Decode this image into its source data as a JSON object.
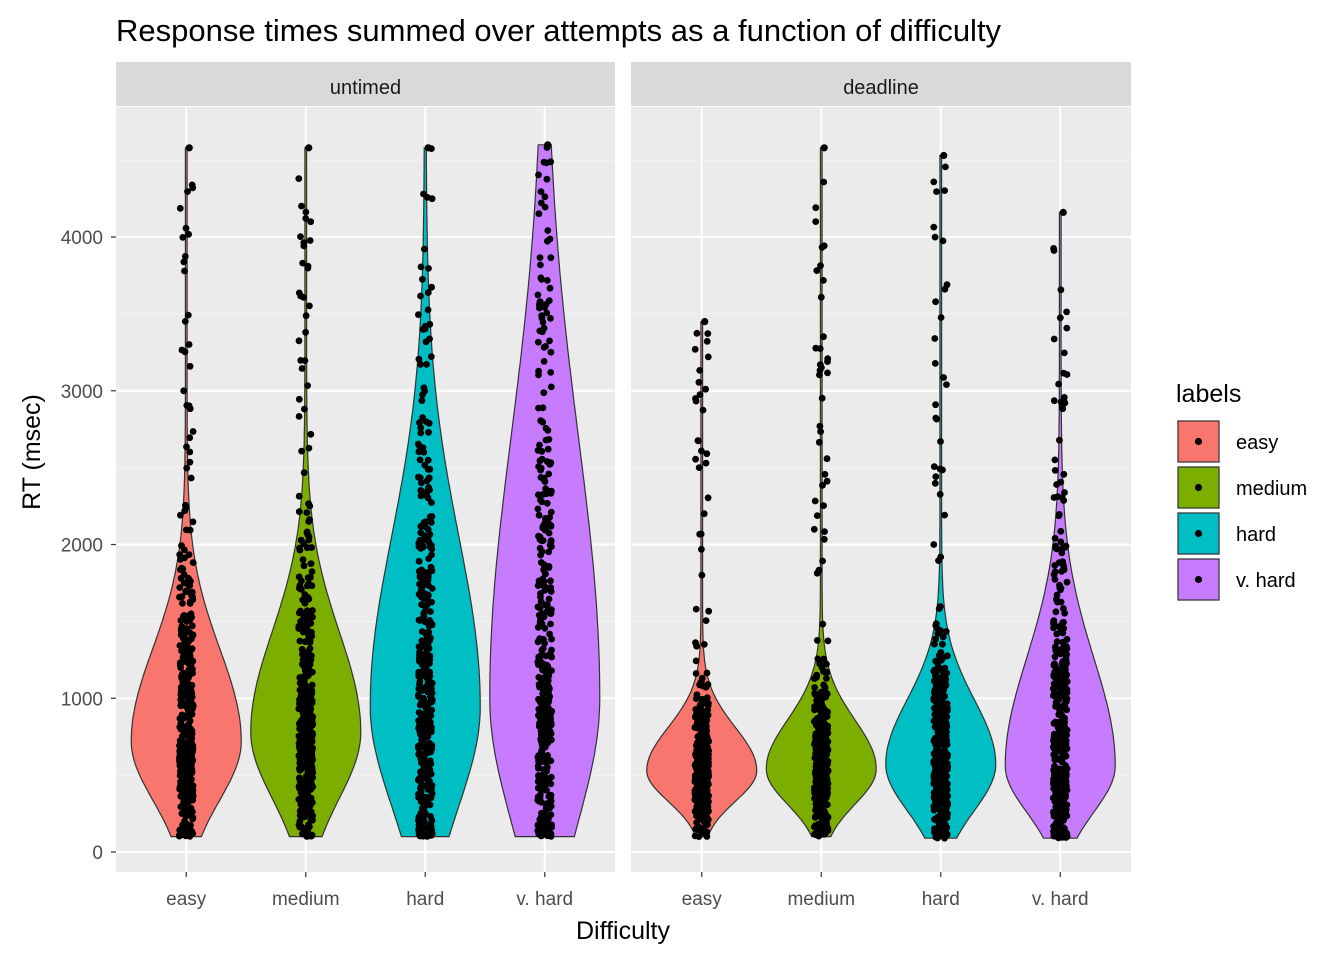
{
  "chart_data": {
    "type": "violin",
    "title": "Response times summed over attempts as a function of difficulty",
    "xlabel": "Difficulty",
    "ylabel": "RT (msec)",
    "ylim": [
      -120,
      4780
    ],
    "yticks": [
      0,
      1000,
      2000,
      3000,
      4000
    ],
    "categories": [
      "easy",
      "medium",
      "hard",
      "v. hard"
    ],
    "legend": {
      "title": "labels",
      "placement": "right",
      "entries": [
        {
          "label": "easy",
          "color": "#F8766D"
        },
        {
          "label": "medium",
          "color": "#7CAE00"
        },
        {
          "label": "hard",
          "color": "#00BFC4"
        },
        {
          "label": "v. hard",
          "color": "#C77CFF"
        }
      ]
    },
    "grid": true,
    "facets": [
      {
        "label": "untimed",
        "series": [
          {
            "category": "easy",
            "min": 100,
            "max": 4580,
            "mode": 720,
            "upper_spread": 600,
            "lower_spread": 380
          },
          {
            "category": "medium",
            "min": 100,
            "max": 4580,
            "mode": 780,
            "upper_spread": 650,
            "lower_spread": 430
          },
          {
            "category": "hard",
            "min": 100,
            "max": 4580,
            "mode": 950,
            "upper_spread": 1100,
            "lower_spread": 650
          },
          {
            "category": "v. hard",
            "min": 100,
            "max": 4600,
            "mode": 1000,
            "upper_spread": 1700,
            "lower_spread": 800
          }
        ]
      },
      {
        "label": "deadline",
        "series": [
          {
            "category": "easy",
            "min": 100,
            "max": 3450,
            "mode": 530,
            "upper_spread": 280,
            "lower_spread": 200
          },
          {
            "category": "medium",
            "min": 100,
            "max": 4580,
            "mode": 540,
            "upper_spread": 320,
            "lower_spread": 230
          },
          {
            "category": "hard",
            "min": 90,
            "max": 4530,
            "mode": 570,
            "upper_spread": 420,
            "lower_spread": 300
          },
          {
            "category": "v. hard",
            "min": 90,
            "max": 4160,
            "mode": 560,
            "upper_spread": 700,
            "lower_spread": 300
          }
        ]
      }
    ]
  }
}
